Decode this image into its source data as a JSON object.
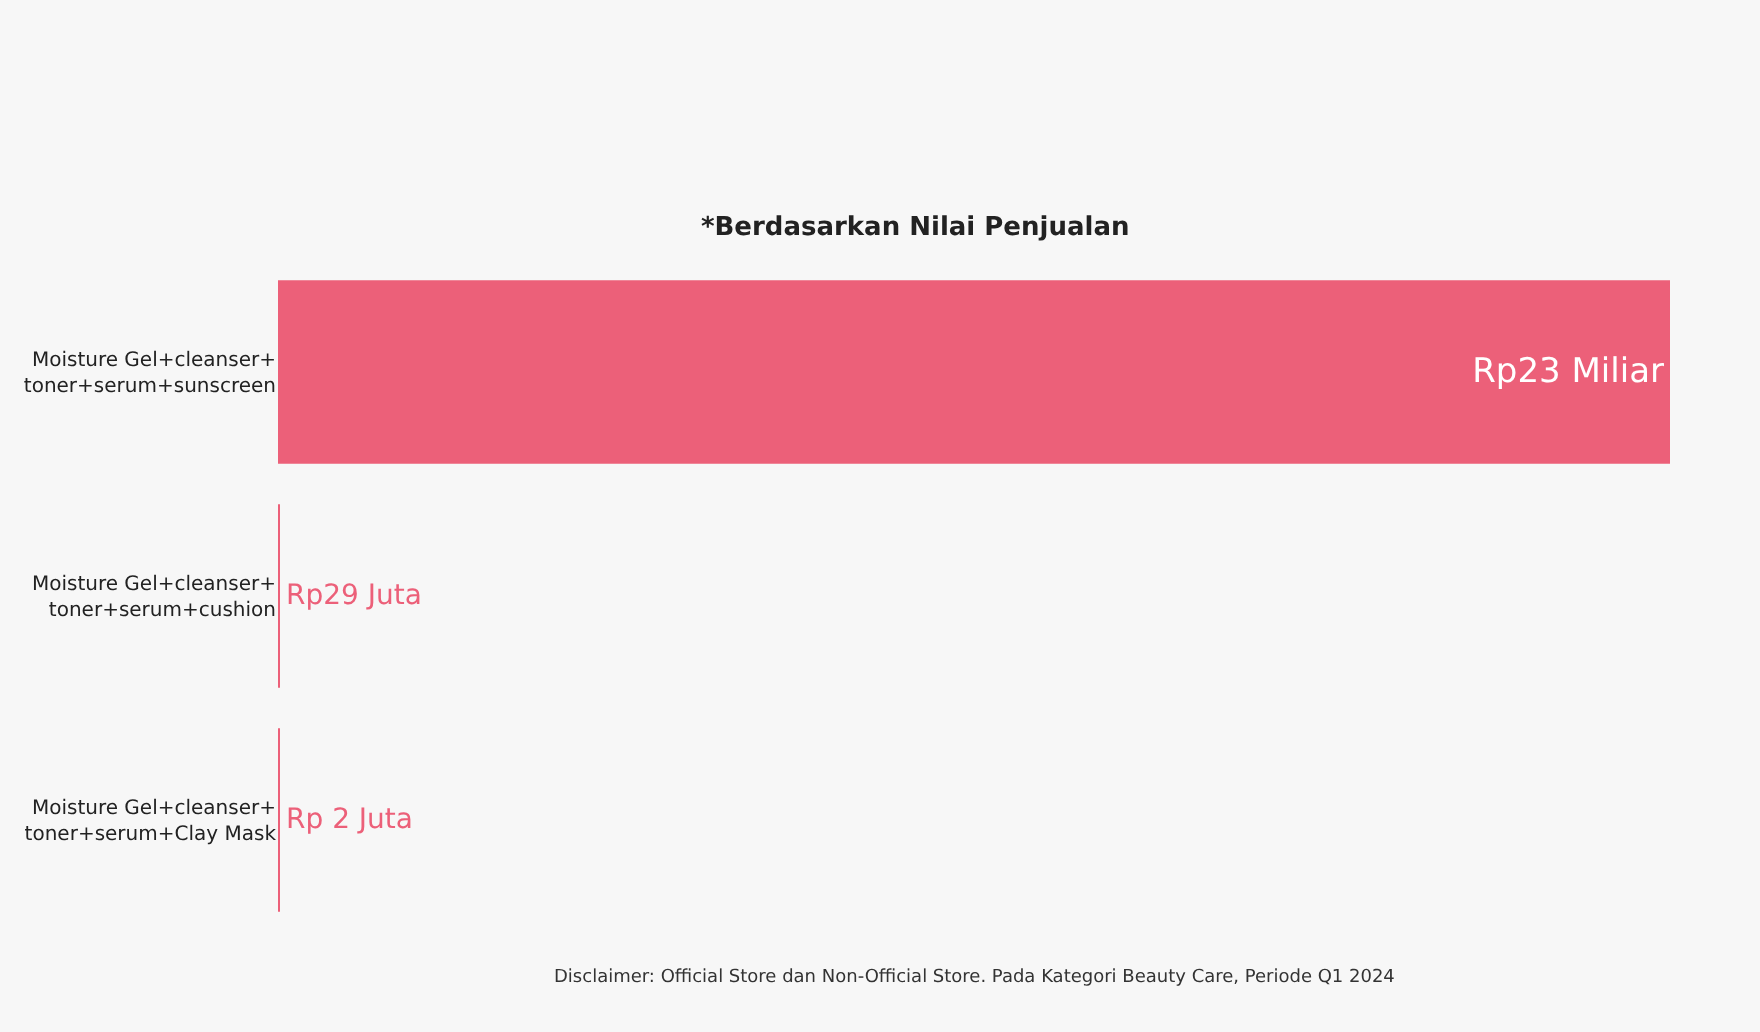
{
  "chart_data": {
    "type": "bar",
    "orientation": "horizontal",
    "title": "*Berdasarkan Nilai Penjualan",
    "categories": [
      "Moisture Gel+cleanser+toner+serum+sunscreen",
      "Moisture Gel+cleanser+toner+serum+cushion",
      "Moisture Gel+cleanser+toner+serum+Clay Mask"
    ],
    "values": [
      23000,
      29,
      2
    ],
    "value_labels": [
      "Rp23 Miliar",
      "Rp29 Juta",
      "Rp 2 Juta"
    ],
    "color": "#ec6079",
    "legend": false,
    "annotations": [
      "Disclaimer: Official Store dan Non-Official Store. Pada Kategori Beauty Care, Periode Q1 2024"
    ]
  }
}
